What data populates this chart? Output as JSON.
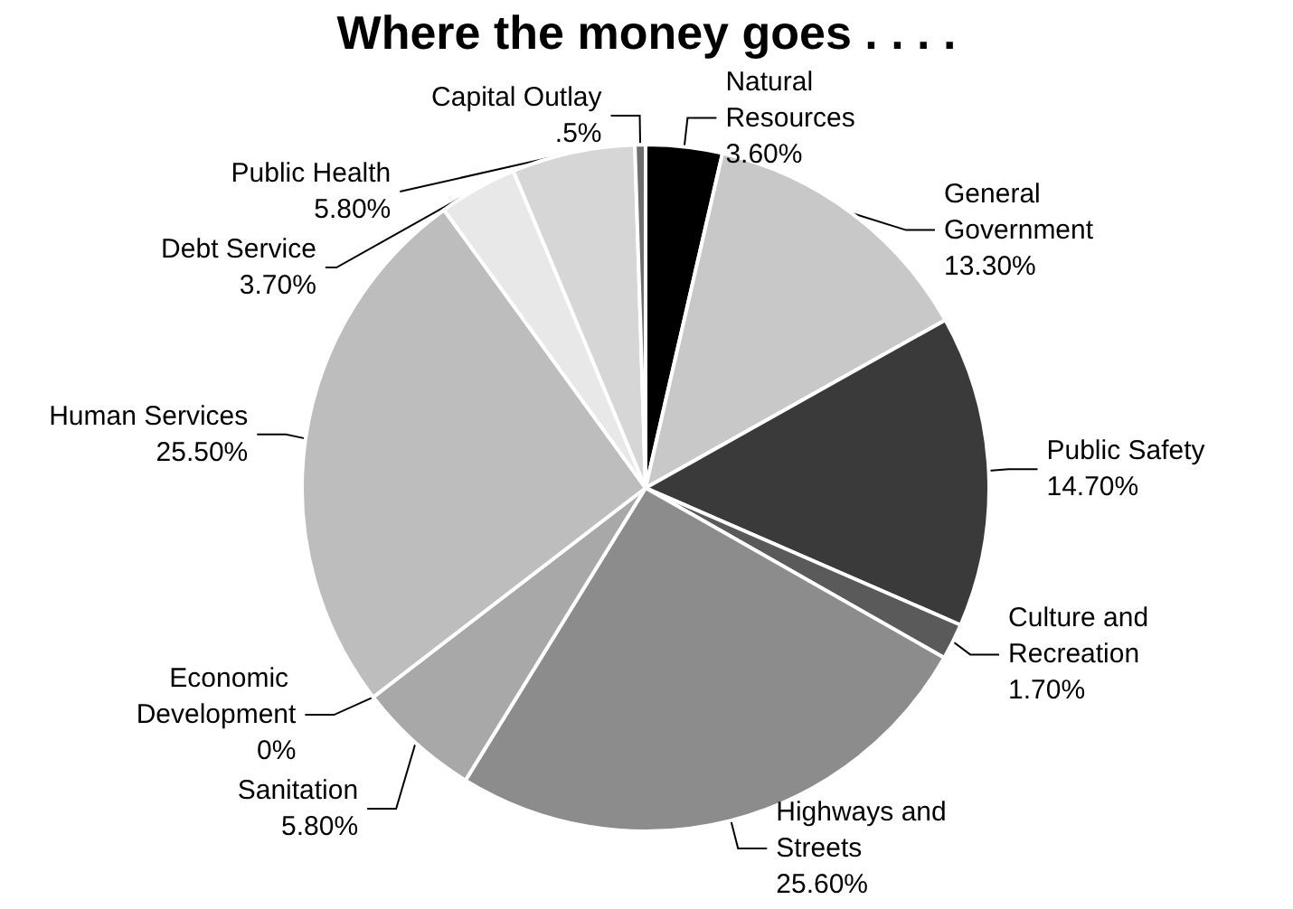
{
  "chart_data": {
    "type": "pie",
    "title": "Where the money goes . . . .",
    "categories": [
      "Natural Resources",
      "General Government",
      "Public Safety",
      "Culture and Recreation",
      "Highways and Streets",
      "Sanitation",
      "Economic Development",
      "Human Services",
      "Debt Service",
      "Public Health",
      "Capital Outlay"
    ],
    "values": [
      3.6,
      13.3,
      14.7,
      1.7,
      25.6,
      5.8,
      0,
      25.5,
      3.7,
      5.8,
      0.5
    ],
    "value_labels": [
      "3.60%",
      "13.30%",
      "14.70%",
      "1.70%",
      "25.60%",
      "5.80%",
      "0%",
      "25.50%",
      "3.70%",
      "5.80%",
      ".5%"
    ],
    "colors": [
      "#000000",
      "#c8c8c8",
      "#3a3a3a",
      "#5a5a5a",
      "#8c8c8c",
      "#a8a8a8",
      "#808080",
      "#bdbdbd",
      "#e8e8e8",
      "#d6d6d6",
      "#6e6e6e"
    ]
  }
}
